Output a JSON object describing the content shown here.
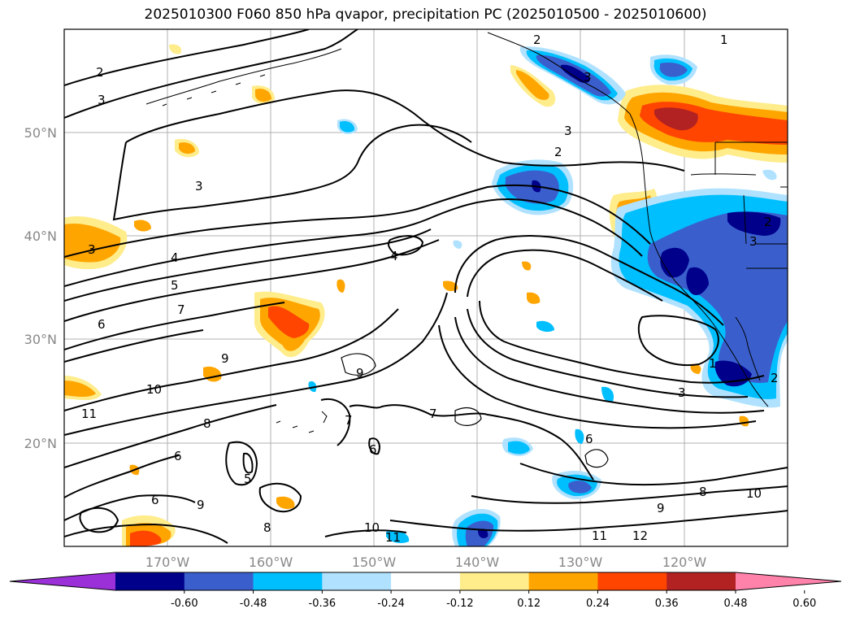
{
  "title": "2025010300 F060 850 hPa qvapor, precipitation PC (2025010500 - 2025010600)",
  "lat_ticks": [
    "50°N",
    "40°N",
    "30°N",
    "20°N"
  ],
  "lon_ticks": [
    "170°W",
    "160°W",
    "150°W",
    "140°W",
    "130°W",
    "120°W"
  ],
  "colorbar": {
    "colors": [
      "#9b30d9",
      "#00008b",
      "#3a5fcd",
      "#00bfff",
      "#b0e2ff",
      "#ffffff",
      "#ffec8b",
      "#ffa500",
      "#ff4500",
      "#b22222",
      "#ff82ab"
    ],
    "labels": [
      "-0.60",
      "-0.48",
      "-0.36",
      "-0.24",
      "-0.12",
      "0.12",
      "0.24",
      "0.36",
      "0.48",
      "0.60"
    ]
  },
  "contour_labels": [
    "1",
    "2",
    "3",
    "2",
    "3",
    "2",
    "3",
    "2",
    "3",
    "3",
    "4",
    "3",
    "4",
    "5",
    "7",
    "6",
    "9",
    "9",
    "10",
    "11",
    "8",
    "7",
    "6",
    "6",
    "5",
    "6",
    "9",
    "8",
    "10",
    "11",
    "9",
    "8",
    "10",
    "11",
    "12",
    "6",
    "7",
    "1",
    "2",
    "3"
  ]
}
